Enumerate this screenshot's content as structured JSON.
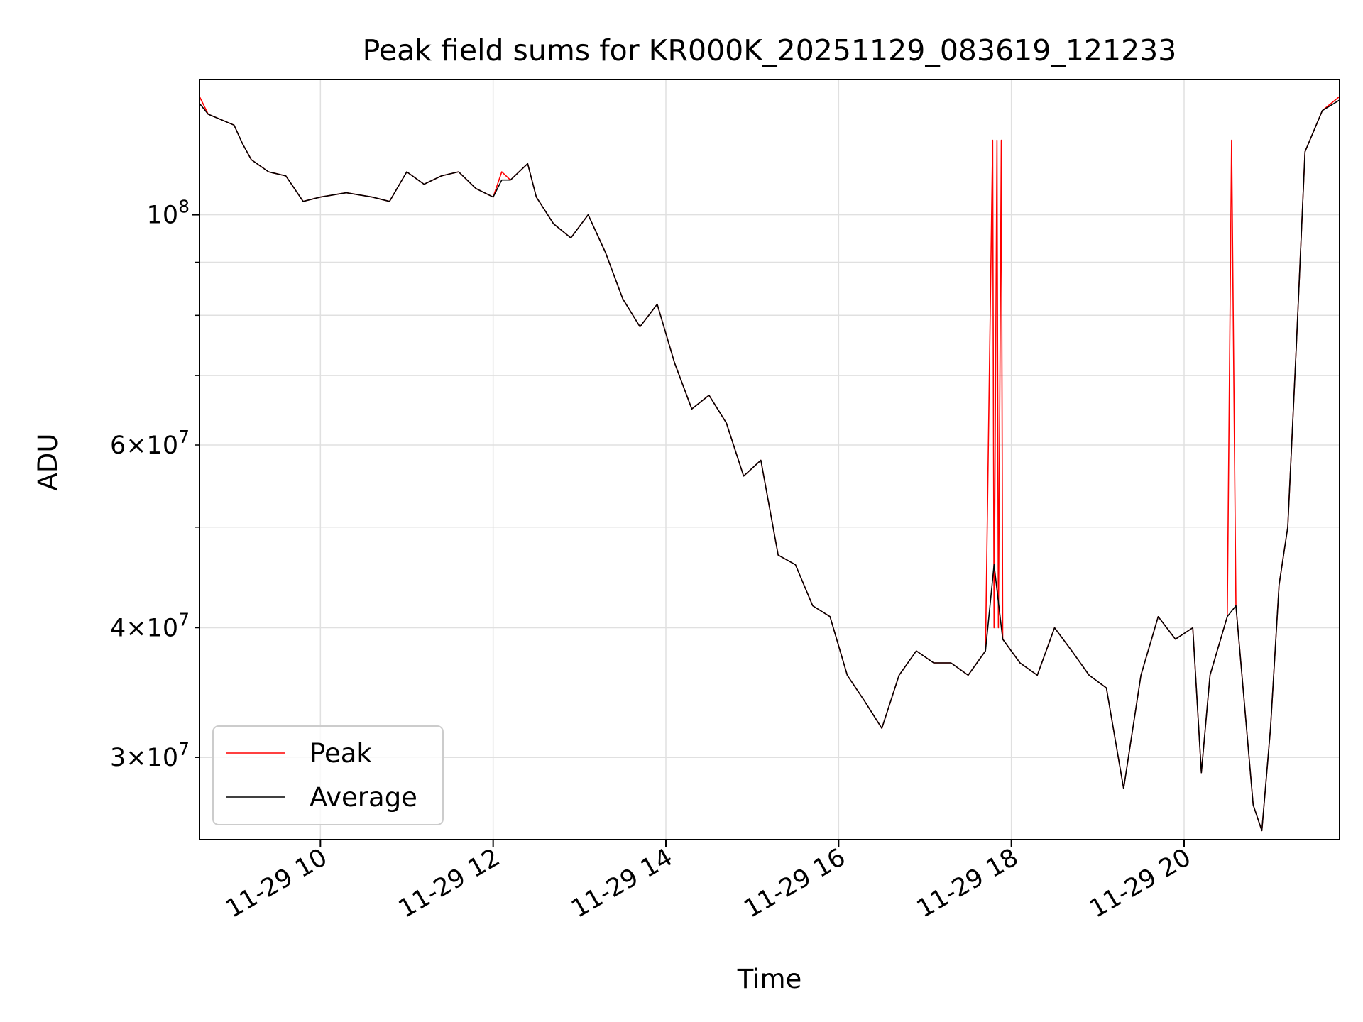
{
  "chart_data": {
    "type": "line",
    "title": "Peak field sums for KR000K_20251129_083619_121233",
    "xlabel": "Time",
    "ylabel": "ADU",
    "x_axis": {
      "type": "time",
      "range": [
        "2025-11-29 08:36",
        "2025-11-29 21:48"
      ],
      "ticks": [
        {
          "value": "2025-11-29 10:00",
          "label": "11-29 10"
        },
        {
          "value": "2025-11-29 12:00",
          "label": "11-29 12"
        },
        {
          "value": "2025-11-29 14:00",
          "label": "11-29 14"
        },
        {
          "value": "2025-11-29 16:00",
          "label": "11-29 16"
        },
        {
          "value": "2025-11-29 18:00",
          "label": "11-29 18"
        },
        {
          "value": "2025-11-29 20:00",
          "label": "11-29 20"
        }
      ]
    },
    "y_axis": {
      "scale": "log",
      "range": [
        25000000,
        135000000
      ],
      "major_ticks": [
        {
          "value": 100000000,
          "base": "10",
          "exp": "8"
        }
      ],
      "minor_ticks": [
        {
          "value": 30000000,
          "mantissa": "3",
          "base": "10",
          "exp": "7"
        },
        {
          "value": 40000000,
          "mantissa": "4",
          "base": "10",
          "exp": "7"
        },
        {
          "value": 50000000
        },
        {
          "value": 60000000,
          "mantissa": "6",
          "base": "10",
          "exp": "7"
        },
        {
          "value": 70000000
        },
        {
          "value": 80000000
        },
        {
          "value": 90000000
        }
      ]
    },
    "grid": true,
    "legend": {
      "position": "lower-left"
    },
    "series": [
      {
        "name": "Peak",
        "color": "#ff0000",
        "points": [
          [
            "2025-11-29 08:36",
            130000000
          ],
          [
            "2025-11-29 08:42",
            125000000
          ],
          [
            "2025-11-29 08:48",
            124000000
          ],
          [
            "2025-11-29 09:00",
            122000000
          ],
          [
            "2025-11-29 09:06",
            117000000
          ],
          [
            "2025-11-29 09:12",
            113000000
          ],
          [
            "2025-11-29 09:24",
            110000000
          ],
          [
            "2025-11-29 09:36",
            109000000
          ],
          [
            "2025-11-29 09:48",
            103000000
          ],
          [
            "2025-11-29 10:00",
            104000000
          ],
          [
            "2025-11-29 10:18",
            105000000
          ],
          [
            "2025-11-29 10:36",
            104000000
          ],
          [
            "2025-11-29 10:48",
            103000000
          ],
          [
            "2025-11-29 11:00",
            110000000
          ],
          [
            "2025-11-29 11:12",
            107000000
          ],
          [
            "2025-11-29 11:24",
            109000000
          ],
          [
            "2025-11-29 11:36",
            110000000
          ],
          [
            "2025-11-29 11:48",
            106000000
          ],
          [
            "2025-11-29 12:00",
            104000000
          ],
          [
            "2025-11-29 12:06",
            110000000
          ],
          [
            "2025-11-29 12:12",
            108000000
          ],
          [
            "2025-11-29 12:24",
            112000000
          ],
          [
            "2025-11-29 12:30",
            104000000
          ],
          [
            "2025-11-29 12:42",
            98000000
          ],
          [
            "2025-11-29 12:54",
            95000000
          ],
          [
            "2025-11-29 13:06",
            100000000
          ],
          [
            "2025-11-29 13:18",
            92000000
          ],
          [
            "2025-11-29 13:30",
            83000000
          ],
          [
            "2025-11-29 13:42",
            78000000
          ],
          [
            "2025-11-29 13:54",
            82000000
          ],
          [
            "2025-11-29 14:06",
            72000000
          ],
          [
            "2025-11-29 14:18",
            65000000
          ],
          [
            "2025-11-29 14:30",
            67000000
          ],
          [
            "2025-11-29 14:42",
            63000000
          ],
          [
            "2025-11-29 14:54",
            56000000
          ],
          [
            "2025-11-29 15:06",
            58000000
          ],
          [
            "2025-11-29 15:18",
            47000000
          ],
          [
            "2025-11-29 15:30",
            46000000
          ],
          [
            "2025-11-29 15:42",
            42000000
          ],
          [
            "2025-11-29 15:54",
            41000000
          ],
          [
            "2025-11-29 16:06",
            36000000
          ],
          [
            "2025-11-29 16:18",
            34000000
          ],
          [
            "2025-11-29 16:30",
            32000000
          ],
          [
            "2025-11-29 16:42",
            36000000
          ],
          [
            "2025-11-29 16:54",
            38000000
          ],
          [
            "2025-11-29 17:06",
            37000000
          ],
          [
            "2025-11-29 17:18",
            37000000
          ],
          [
            "2025-11-29 17:30",
            36000000
          ],
          [
            "2025-11-29 17:42",
            38000000
          ],
          [
            "2025-11-29 17:47",
            118000000
          ],
          [
            "2025-11-29 17:48",
            40000000
          ],
          [
            "2025-11-29 17:50",
            118000000
          ],
          [
            "2025-11-29 17:51",
            40000000
          ],
          [
            "2025-11-29 17:53",
            118000000
          ],
          [
            "2025-11-29 17:54",
            39000000
          ],
          [
            "2025-11-29 18:06",
            37000000
          ],
          [
            "2025-11-29 18:18",
            36000000
          ],
          [
            "2025-11-29 18:30",
            40000000
          ],
          [
            "2025-11-29 18:42",
            38000000
          ],
          [
            "2025-11-29 18:54",
            36000000
          ],
          [
            "2025-11-29 19:06",
            35000000
          ],
          [
            "2025-11-29 19:18",
            28000000
          ],
          [
            "2025-11-29 19:30",
            36000000
          ],
          [
            "2025-11-29 19:42",
            41000000
          ],
          [
            "2025-11-29 19:54",
            39000000
          ],
          [
            "2025-11-29 20:06",
            40000000
          ],
          [
            "2025-11-29 20:12",
            29000000
          ],
          [
            "2025-11-29 20:18",
            36000000
          ],
          [
            "2025-11-29 20:30",
            41000000
          ],
          [
            "2025-11-29 20:33",
            118000000
          ],
          [
            "2025-11-29 20:36",
            42000000
          ],
          [
            "2025-11-29 20:48",
            27000000
          ],
          [
            "2025-11-29 20:54",
            25500000
          ],
          [
            "2025-11-29 21:00",
            32000000
          ],
          [
            "2025-11-29 21:06",
            44000000
          ],
          [
            "2025-11-29 21:12",
            50000000
          ],
          [
            "2025-11-29 21:18",
            75000000
          ],
          [
            "2025-11-29 21:24",
            115000000
          ],
          [
            "2025-11-29 21:36",
            126000000
          ],
          [
            "2025-11-29 21:48",
            130000000
          ]
        ]
      },
      {
        "name": "Average",
        "color": "#000000",
        "points": [
          [
            "2025-11-29 08:36",
            128000000
          ],
          [
            "2025-11-29 08:42",
            125000000
          ],
          [
            "2025-11-29 08:48",
            124000000
          ],
          [
            "2025-11-29 09:00",
            122000000
          ],
          [
            "2025-11-29 09:06",
            117000000
          ],
          [
            "2025-11-29 09:12",
            113000000
          ],
          [
            "2025-11-29 09:24",
            110000000
          ],
          [
            "2025-11-29 09:36",
            109000000
          ],
          [
            "2025-11-29 09:48",
            103000000
          ],
          [
            "2025-11-29 10:00",
            104000000
          ],
          [
            "2025-11-29 10:18",
            105000000
          ],
          [
            "2025-11-29 10:36",
            104000000
          ],
          [
            "2025-11-29 10:48",
            103000000
          ],
          [
            "2025-11-29 11:00",
            110000000
          ],
          [
            "2025-11-29 11:12",
            107000000
          ],
          [
            "2025-11-29 11:24",
            109000000
          ],
          [
            "2025-11-29 11:36",
            110000000
          ],
          [
            "2025-11-29 11:48",
            106000000
          ],
          [
            "2025-11-29 12:00",
            104000000
          ],
          [
            "2025-11-29 12:06",
            108000000
          ],
          [
            "2025-11-29 12:12",
            108000000
          ],
          [
            "2025-11-29 12:24",
            112000000
          ],
          [
            "2025-11-29 12:30",
            104000000
          ],
          [
            "2025-11-29 12:42",
            98000000
          ],
          [
            "2025-11-29 12:54",
            95000000
          ],
          [
            "2025-11-29 13:06",
            100000000
          ],
          [
            "2025-11-29 13:18",
            92000000
          ],
          [
            "2025-11-29 13:30",
            83000000
          ],
          [
            "2025-11-29 13:42",
            78000000
          ],
          [
            "2025-11-29 13:54",
            82000000
          ],
          [
            "2025-11-29 14:06",
            72000000
          ],
          [
            "2025-11-29 14:18",
            65000000
          ],
          [
            "2025-11-29 14:30",
            67000000
          ],
          [
            "2025-11-29 14:42",
            63000000
          ],
          [
            "2025-11-29 14:54",
            56000000
          ],
          [
            "2025-11-29 15:06",
            58000000
          ],
          [
            "2025-11-29 15:18",
            47000000
          ],
          [
            "2025-11-29 15:30",
            46000000
          ],
          [
            "2025-11-29 15:42",
            42000000
          ],
          [
            "2025-11-29 15:54",
            41000000
          ],
          [
            "2025-11-29 16:06",
            36000000
          ],
          [
            "2025-11-29 16:18",
            34000000
          ],
          [
            "2025-11-29 16:30",
            32000000
          ],
          [
            "2025-11-29 16:42",
            36000000
          ],
          [
            "2025-11-29 16:54",
            38000000
          ],
          [
            "2025-11-29 17:06",
            37000000
          ],
          [
            "2025-11-29 17:18",
            37000000
          ],
          [
            "2025-11-29 17:30",
            36000000
          ],
          [
            "2025-11-29 17:42",
            38000000
          ],
          [
            "2025-11-29 17:48",
            46000000
          ],
          [
            "2025-11-29 17:54",
            39000000
          ],
          [
            "2025-11-29 18:06",
            37000000
          ],
          [
            "2025-11-29 18:18",
            36000000
          ],
          [
            "2025-11-29 18:30",
            40000000
          ],
          [
            "2025-11-29 18:42",
            38000000
          ],
          [
            "2025-11-29 18:54",
            36000000
          ],
          [
            "2025-11-29 19:06",
            35000000
          ],
          [
            "2025-11-29 19:18",
            28000000
          ],
          [
            "2025-11-29 19:30",
            36000000
          ],
          [
            "2025-11-29 19:42",
            41000000
          ],
          [
            "2025-11-29 19:54",
            39000000
          ],
          [
            "2025-11-29 20:06",
            40000000
          ],
          [
            "2025-11-29 20:12",
            29000000
          ],
          [
            "2025-11-29 20:18",
            36000000
          ],
          [
            "2025-11-29 20:30",
            41000000
          ],
          [
            "2025-11-29 20:36",
            42000000
          ],
          [
            "2025-11-29 20:48",
            27000000
          ],
          [
            "2025-11-29 20:54",
            25500000
          ],
          [
            "2025-11-29 21:00",
            32000000
          ],
          [
            "2025-11-29 21:06",
            44000000
          ],
          [
            "2025-11-29 21:12",
            50000000
          ],
          [
            "2025-11-29 21:18",
            75000000
          ],
          [
            "2025-11-29 21:24",
            115000000
          ],
          [
            "2025-11-29 21:36",
            126000000
          ],
          [
            "2025-11-29 21:48",
            129000000
          ]
        ]
      }
    ]
  }
}
